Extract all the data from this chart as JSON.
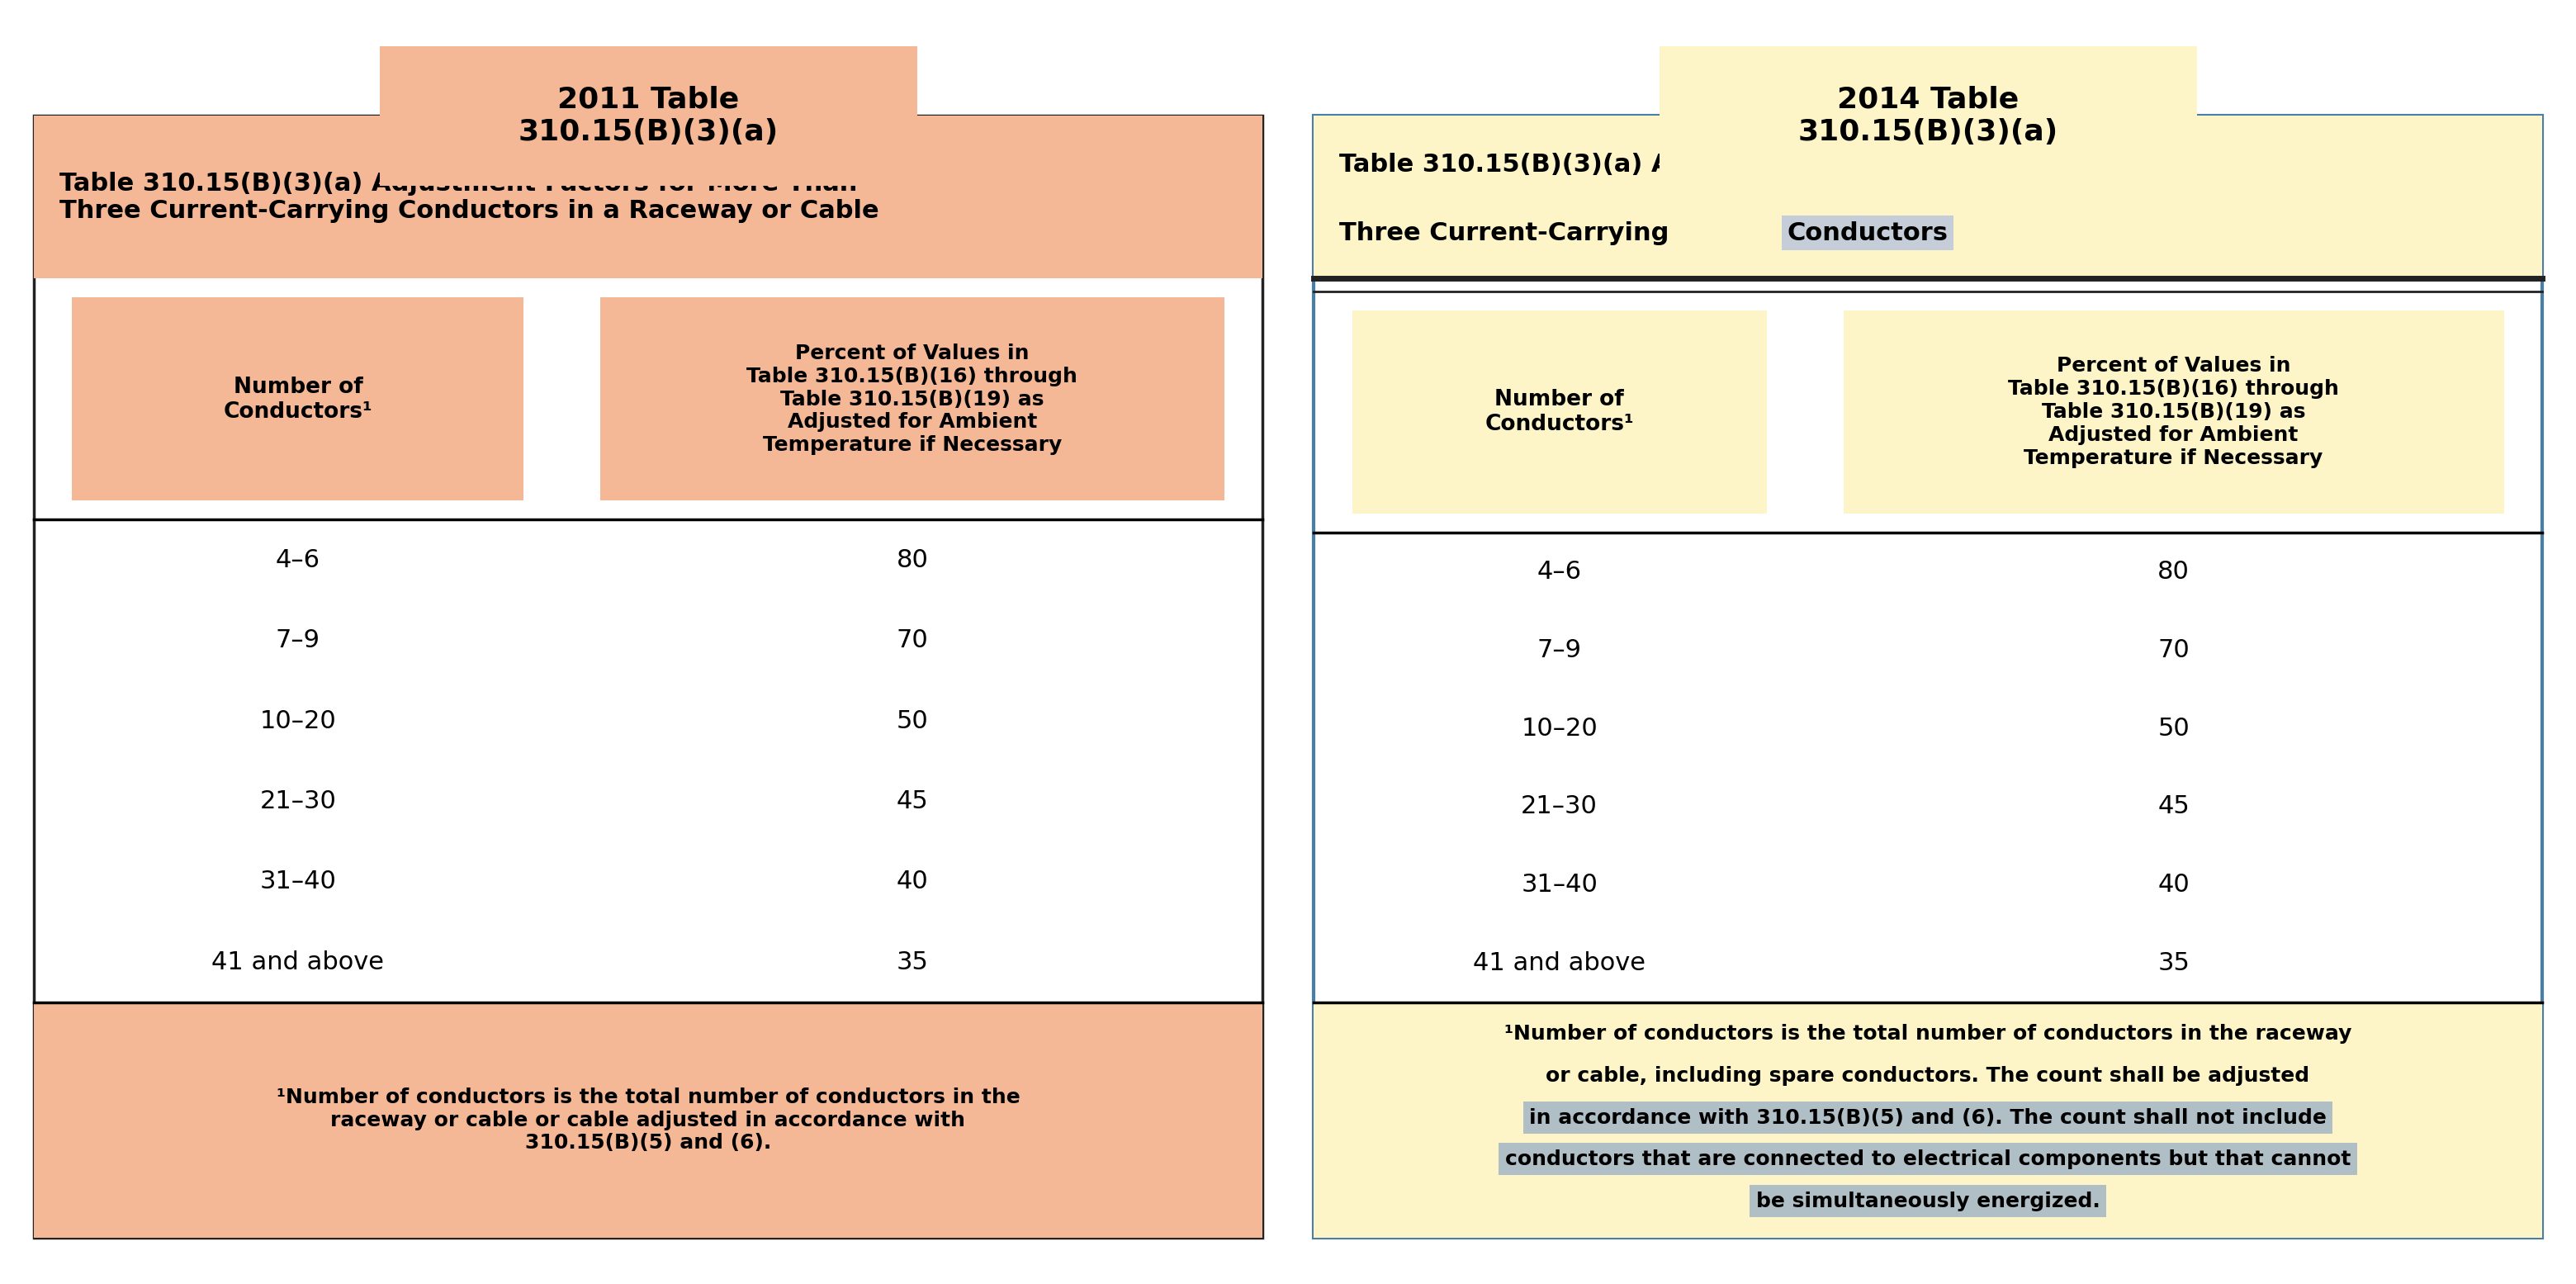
{
  "fig_width": 40.0,
  "fig_height": 19.94,
  "bg_color": "#ffffff",
  "left_title": "2011 Table\n310.15(B)(3)(a)",
  "left_title_bg": "#f4b896",
  "right_title": "2014 Table\n310.15(B)(3)(a)",
  "right_title_bg": "#fdf5c8",
  "left_header_bg": "#f4b896",
  "left_col1_bg": "#f4b896",
  "left_col2_bg": "#f4b896",
  "left_footer_bg": "#f4b896",
  "left_data_bg": "#ffffff",
  "left_border_color": "#222222",
  "right_header_bg": "#fdf5c8",
  "right_col1_bg": "#fdf5c8",
  "right_col2_bg": "#fdf5c8",
  "right_footer_bg": "#fdf5c8",
  "right_data_bg": "#ffffff",
  "right_border_color": "#4a7fa5",
  "right_double_line_color": "#222222",
  "left_table_title": "Table 310.15(B)(3)(a) Adjustment Factors for More Than\nThree Current-Carrying Conductors in a Raceway or Cable",
  "right_table_title_line1": "Table 310.15(B)(3)(a) Adjustment Factors for More Than",
  "right_table_title_line2_pre": "Three Current-Carrying ",
  "right_table_title_line2_highlight": "Conductors",
  "right_title_highlight_bg": "#c5cdd8",
  "col1_header": "Number of\nConductors¹",
  "col2_header": "Percent of Values in\nTable 310.15(B)(16) through\nTable 310.15(B)(19) as\nAdjusted for Ambient\nTemperature if Necessary",
  "data_rows": [
    [
      "4–6",
      "80"
    ],
    [
      "7–9",
      "70"
    ],
    [
      "10–20",
      "50"
    ],
    [
      "21–30",
      "45"
    ],
    [
      "31–40",
      "40"
    ],
    [
      "41 and above",
      "35"
    ]
  ],
  "left_footer_text": "¹Number of conductors is the total number of conductors in the\nraceway or cable or cable adjusted in accordance with\n310.15(B)(5) and (6).",
  "right_footer_line1": "¹Number of conductors is the total number of conductors in the raceway",
  "right_footer_line2": "or cable, including spare conductors. The count shall be adjusted",
  "right_footer_line3": "in accordance with 310.15(B)(5) and (6). ",
  "right_footer_line3_highlight": "The count shall not include",
  "right_footer_line4": "conductors that are connected to electrical components but that cannot",
  "right_footer_line5": "be simultaneously energized.",
  "right_footer_highlight_bg": "#b0bec5",
  "title_fontsize": 26,
  "header_title_fontsize": 22,
  "col_header_fontsize": 19,
  "data_fontsize": 22,
  "footer_fontsize": 18
}
